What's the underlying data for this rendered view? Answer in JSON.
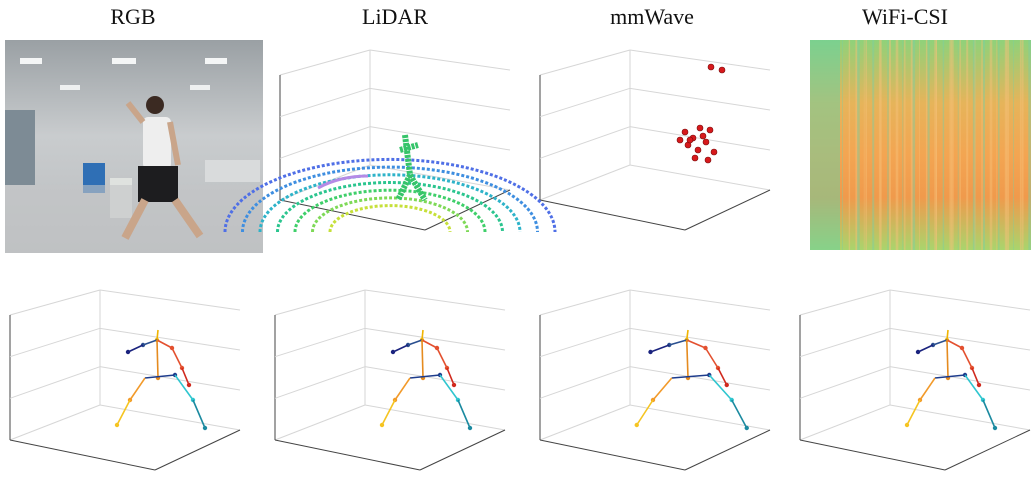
{
  "panels": [
    {
      "title": "RGB"
    },
    {
      "title": "LiDAR"
    },
    {
      "title": "mmWave"
    },
    {
      "title": "WiFi-CSI"
    }
  ]
}
